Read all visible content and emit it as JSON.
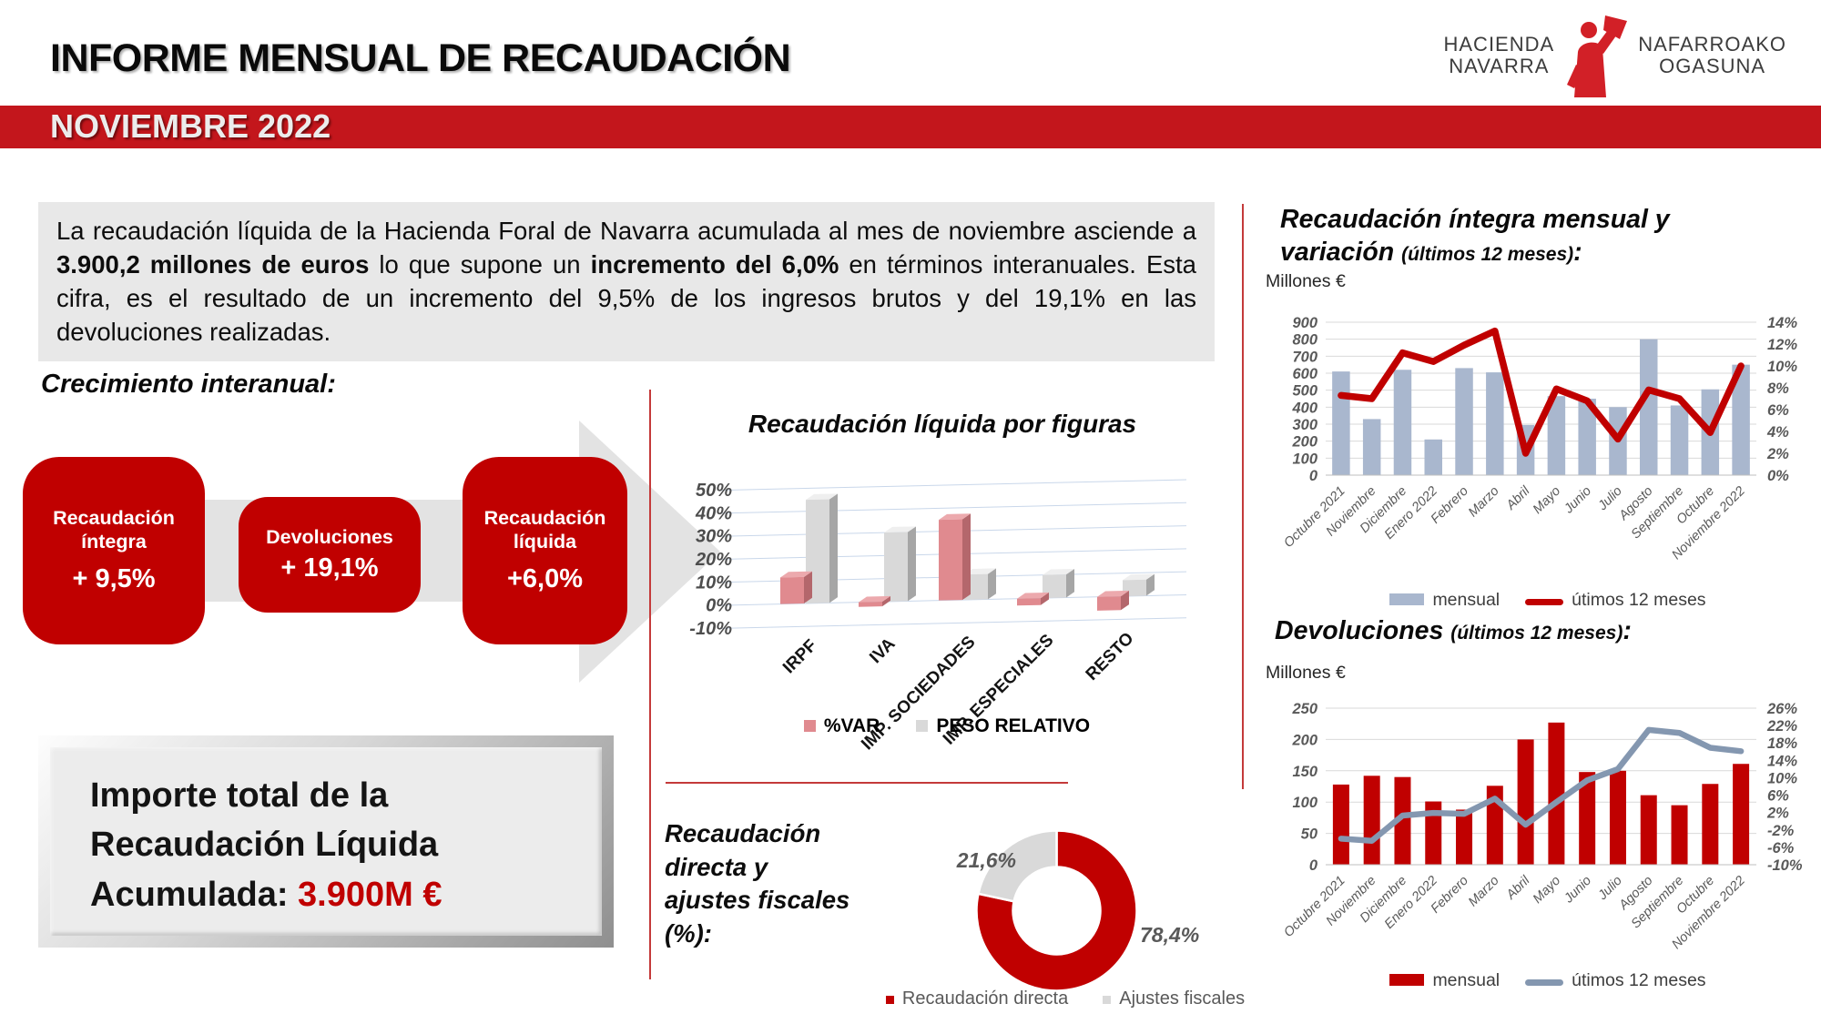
{
  "header": {
    "title": "INFORME MENSUAL DE RECAUDACIÓN",
    "banner": "NOVIEMBRE 2022",
    "logo": {
      "l1": "HACIENDA",
      "l2": "NAVARRA",
      "r1": "NAFARROAKO",
      "r2": "OGASUNA"
    }
  },
  "intro": {
    "t1": "La recaudación líquida de la Hacienda Foral de Navarra acumulada al mes de noviembre asciende a ",
    "b1": "3.900,2 millones de euros",
    "t2": " lo que supone un ",
    "b2": "incremento del 6,0%",
    "t3": " en términos interanuales. Esta cifra, es el resultado de un incremento del 9,5% de los ingresos brutos y del 19,1% en las devoluciones realizadas."
  },
  "growth": {
    "heading": "Crecimiento interanual:",
    "boxes": [
      {
        "label": "Recaudación íntegra",
        "value": "+ 9,5%"
      },
      {
        "label": "Devoluciones",
        "value": "+ 19,1%"
      },
      {
        "label": "Recaudación líquida",
        "value": "+6,0%"
      }
    ]
  },
  "total_box": {
    "line1": "Importe total de la",
    "line2": "Recaudación Líquida",
    "line3_prefix": "Acumulada: ",
    "amount": "3.900M €"
  },
  "colors": {
    "accent_red": "#C00000",
    "banner_red": "#C3161C",
    "pink": "#E08A8F",
    "light_gray": "#D9D9D9",
    "bar_blue": "#A9B7CE",
    "line_gray": "#8497B0",
    "axis_text": "#595959"
  },
  "chart_data": [
    {
      "id": "figuras",
      "type": "bar",
      "effect": "3d",
      "title": "Recaudación líquida por figuras",
      "categories": [
        "IRPF",
        "IVA",
        "IMP. SOCIEDADES",
        "IMP. ESPECIALES",
        "RESTO"
      ],
      "series": [
        {
          "name": "%VAR",
          "color": "#E08A8F",
          "top": "#ECA9AD",
          "side": "#B4676C",
          "values": [
            11.5,
            -2,
            35,
            -3,
            -6
          ]
        },
        {
          "name": "PESO RELATIVO",
          "color": "#D9D9D9",
          "top": "#EFEFEF",
          "side": "#A6A6A6",
          "values": [
            45,
            30,
            11,
            10,
            7
          ]
        }
      ],
      "ylim": [
        -10,
        50
      ],
      "ytick_step": 10,
      "ytick_suffix": "%",
      "grid": true,
      "legend_position": "bottom"
    },
    {
      "id": "integra",
      "type": "bar+line",
      "title": "Recaudación íntegra mensual y variación (últimos 12 meses):",
      "title_main": "Recaudación íntegra mensual y variación ",
      "title_small": "(últimos 12 meses)",
      "title_colon": ":",
      "unit": "Millones €",
      "categories": [
        "Octubre 2021",
        "Noviembre",
        "Diciembre",
        "Enero 2022",
        "Febrero",
        "Marzo",
        "Abril",
        "Mayo",
        "Junio",
        "Julio",
        "Agosto",
        "Septiembre",
        "Octubre",
        "Noviembre 2022"
      ],
      "bars": {
        "name": "mensual",
        "color": "#A9B7CE",
        "values": [
          610,
          330,
          620,
          210,
          630,
          605,
          295,
          465,
          450,
          400,
          800,
          410,
          505,
          650
        ]
      },
      "line": {
        "name": "útimos 12 meses",
        "color": "#C00000",
        "values": [
          7.3,
          7.0,
          11.2,
          10.4,
          11.9,
          13.2,
          2.0,
          7.9,
          6.8,
          3.3,
          7.8,
          7.0,
          3.9,
          10.0
        ]
      },
      "left_axis": {
        "min": 0,
        "max": 900,
        "step": 100
      },
      "right_axis": {
        "min": 0,
        "max": 14,
        "step": 2,
        "suffix": "%"
      },
      "grid": true,
      "legend_position": "bottom"
    },
    {
      "id": "devoluciones",
      "type": "bar+line",
      "title": "Devoluciones (últimos 12 meses):",
      "title_main": "Devoluciones ",
      "title_small": "(últimos 12 meses)",
      "title_colon": ":",
      "unit": "Millones €",
      "categories": [
        "Octubre 2021",
        "Noviembre",
        "Diciembre",
        "Enero 2022",
        "Febrero",
        "Marzo",
        "Abril",
        "Mayo",
        "Junio",
        "Julio",
        "Agosto",
        "Septiembre",
        "Octubre",
        "Noviembre 2022"
      ],
      "bars": {
        "name": "mensual",
        "color": "#C00000",
        "values": [
          128,
          142,
          140,
          101,
          88,
          126,
          200,
          227,
          148,
          150,
          111,
          95,
          129,
          161
        ]
      },
      "line": {
        "name": "útimos 12 meses",
        "color": "#8497B0",
        "values": [
          -4.0,
          -4.5,
          1.3,
          1.9,
          1.7,
          5.2,
          -0.8,
          4.4,
          9.4,
          12.0,
          21.0,
          20.3,
          16.9,
          16.1
        ]
      },
      "left_axis": {
        "min": 0,
        "max": 250,
        "step": 50
      },
      "right_axis": {
        "min": -10,
        "max": 26,
        "step": 4,
        "suffix": "%"
      },
      "grid": true,
      "legend_position": "bottom"
    },
    {
      "id": "directa",
      "type": "pie",
      "title": "Recaudación directa y ajustes fiscales (%):",
      "slices": [
        {
          "label": "Recaudación directa",
          "value": 78.4,
          "display": "78,4%",
          "color": "#C00000"
        },
        {
          "label": "Ajustes fiscales",
          "value": 21.6,
          "display": "21,6%",
          "color": "#D9D9D9"
        }
      ],
      "start_angle": "top",
      "direction": "clockwise",
      "donut_hole": 0.55,
      "legend_position": "bottom"
    }
  ]
}
